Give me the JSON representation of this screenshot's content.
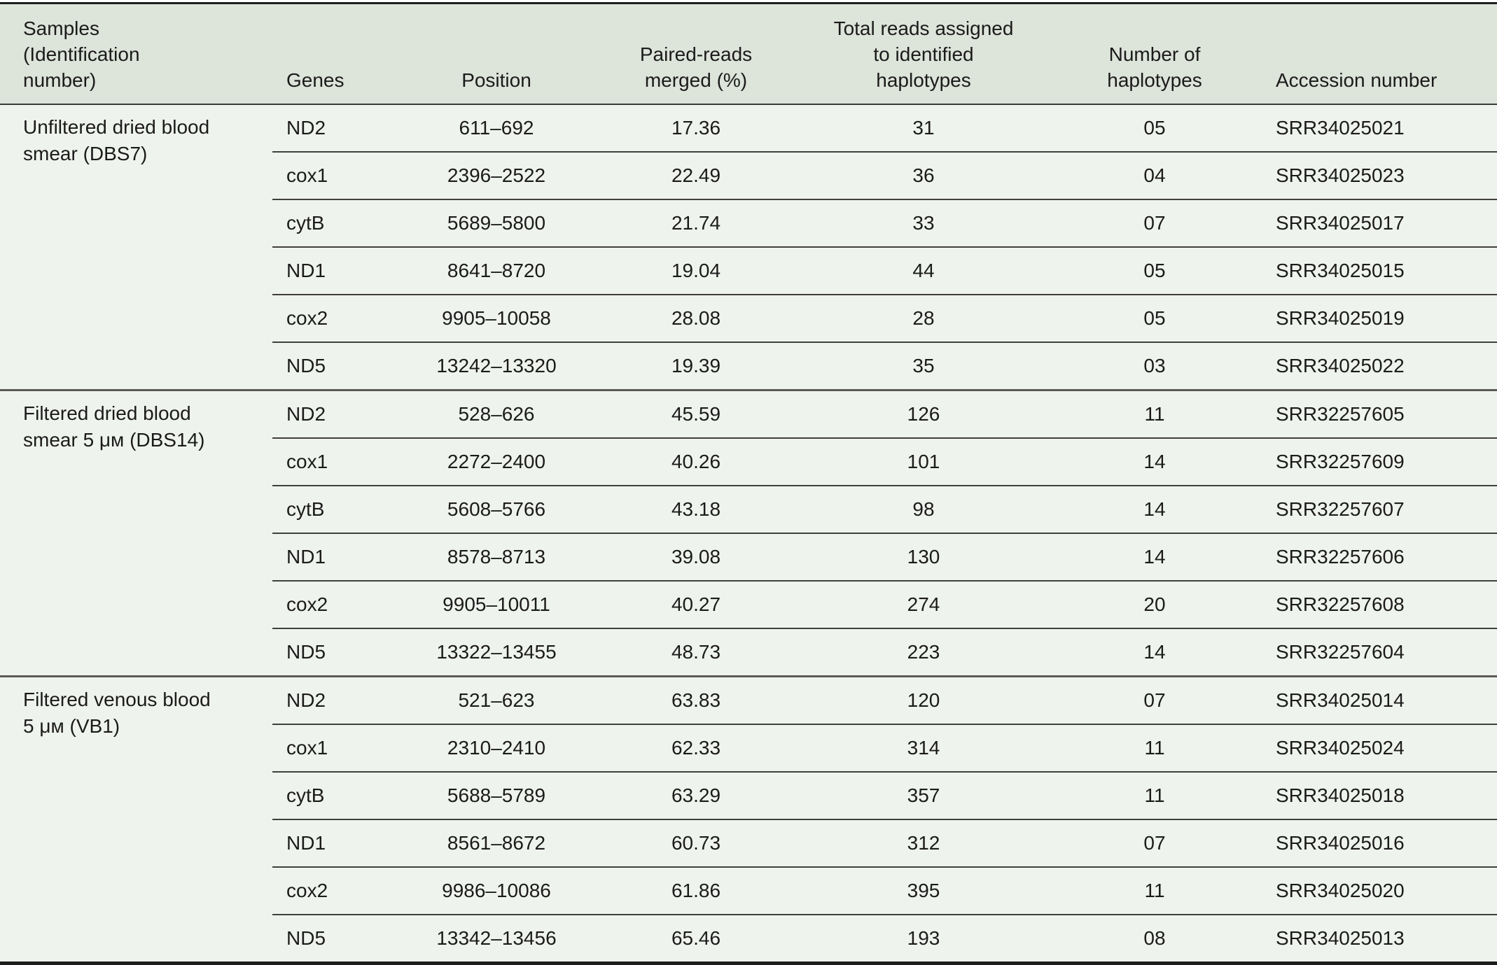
{
  "colors": {
    "header_background": "#dde4d9",
    "body_background": "#eff3ed",
    "text": "#1b1b1b",
    "outer_border": "#1d1d1d",
    "row_separator": "#3f3f3f",
    "group_separator": "#595959"
  },
  "table": {
    "headers": [
      "Samples\n(Identification\nnumber)",
      "Genes",
      "Position",
      "Paired-reads\nmerged (%)",
      "Total reads assigned\nto identified\nhaplotypes",
      "Number of\nhaplotypes",
      "Accession number"
    ],
    "groups": [
      {
        "sample": "Unfiltered dried blood\nsmear (DBS7)",
        "rows": [
          {
            "gene": "ND2",
            "position": "611–692",
            "paired_reads_merged_pct": "17.36",
            "total_reads": "31",
            "num_haplotypes": "05",
            "accession": "SRR34025021"
          },
          {
            "gene": "cox1",
            "position": "2396–2522",
            "paired_reads_merged_pct": "22.49",
            "total_reads": "36",
            "num_haplotypes": "04",
            "accession": "SRR34025023"
          },
          {
            "gene": "cytB",
            "position": "5689–5800",
            "paired_reads_merged_pct": "21.74",
            "total_reads": "33",
            "num_haplotypes": "07",
            "accession": "SRR34025017"
          },
          {
            "gene": "ND1",
            "position": "8641–8720",
            "paired_reads_merged_pct": "19.04",
            "total_reads": "44",
            "num_haplotypes": "05",
            "accession": "SRR34025015"
          },
          {
            "gene": "cox2",
            "position": "9905–10058",
            "paired_reads_merged_pct": "28.08",
            "total_reads": "28",
            "num_haplotypes": "05",
            "accession": "SRR34025019"
          },
          {
            "gene": "ND5",
            "position": "13242–13320",
            "paired_reads_merged_pct": "19.39",
            "total_reads": "35",
            "num_haplotypes": "03",
            "accession": "SRR34025022"
          }
        ]
      },
      {
        "sample": "Filtered dried blood\nsmear 5 μᴍ (DBS14)",
        "rows": [
          {
            "gene": "ND2",
            "position": "528–626",
            "paired_reads_merged_pct": "45.59",
            "total_reads": "126",
            "num_haplotypes": "11",
            "accession": "SRR32257605"
          },
          {
            "gene": "cox1",
            "position": "2272–2400",
            "paired_reads_merged_pct": "40.26",
            "total_reads": "101",
            "num_haplotypes": "14",
            "accession": "SRR32257609"
          },
          {
            "gene": "cytB",
            "position": "5608–5766",
            "paired_reads_merged_pct": "43.18",
            "total_reads": "98",
            "num_haplotypes": "14",
            "accession": "SRR32257607"
          },
          {
            "gene": "ND1",
            "position": "8578–8713",
            "paired_reads_merged_pct": "39.08",
            "total_reads": "130",
            "num_haplotypes": "14",
            "accession": "SRR32257606"
          },
          {
            "gene": "cox2",
            "position": "9905–10011",
            "paired_reads_merged_pct": "40.27",
            "total_reads": "274",
            "num_haplotypes": "20",
            "accession": "SRR32257608"
          },
          {
            "gene": "ND5",
            "position": "13322–13455",
            "paired_reads_merged_pct": "48.73",
            "total_reads": "223",
            "num_haplotypes": "14",
            "accession": "SRR32257604"
          }
        ]
      },
      {
        "sample": "Filtered venous blood\n5 μᴍ (VB1)",
        "rows": [
          {
            "gene": "ND2",
            "position": "521–623",
            "paired_reads_merged_pct": "63.83",
            "total_reads": "120",
            "num_haplotypes": "07",
            "accession": "SRR34025014"
          },
          {
            "gene": "cox1",
            "position": "2310–2410",
            "paired_reads_merged_pct": "62.33",
            "total_reads": "314",
            "num_haplotypes": "11",
            "accession": "SRR34025024"
          },
          {
            "gene": "cytB",
            "position": "5688–5789",
            "paired_reads_merged_pct": "63.29",
            "total_reads": "357",
            "num_haplotypes": "11",
            "accession": "SRR34025018"
          },
          {
            "gene": "ND1",
            "position": "8561–8672",
            "paired_reads_merged_pct": "60.73",
            "total_reads": "312",
            "num_haplotypes": "07",
            "accession": "SRR34025016"
          },
          {
            "gene": "cox2",
            "position": "9986–10086",
            "paired_reads_merged_pct": "61.86",
            "total_reads": "395",
            "num_haplotypes": "11",
            "accession": "SRR34025020"
          },
          {
            "gene": "ND5",
            "position": "13342–13456",
            "paired_reads_merged_pct": "65.46",
            "total_reads": "193",
            "num_haplotypes": "08",
            "accession": "SRR34025013"
          }
        ]
      }
    ]
  }
}
